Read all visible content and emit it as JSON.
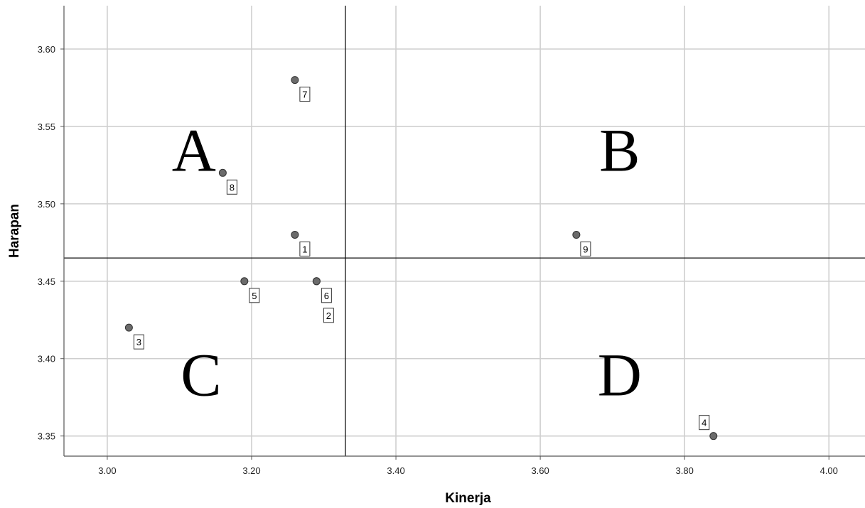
{
  "chart_data": {
    "type": "scatter",
    "title": "",
    "xlabel": "Kinerja",
    "ylabel": "Harapan",
    "xlim": [
      2.94,
      4.05
    ],
    "ylim": [
      3.337,
      3.628
    ],
    "x_ticks": [
      3.0,
      3.2,
      3.4,
      3.6,
      3.8,
      4.0
    ],
    "x_tick_labels": [
      "3.00",
      "3.20",
      "3.40",
      "3.60",
      "3.80",
      "4.00"
    ],
    "y_ticks": [
      3.35,
      3.4,
      3.45,
      3.5,
      3.55,
      3.6
    ],
    "y_tick_labels": [
      "3.35",
      "3.40",
      "3.45",
      "3.50",
      "3.55",
      "3.60"
    ],
    "grid": true,
    "reference_lines": {
      "x": 3.33,
      "y": 3.465
    },
    "quadrant_labels": [
      {
        "text": "A",
        "x": 3.12,
        "y": 3.535
      },
      {
        "text": "B",
        "x": 3.71,
        "y": 3.535
      },
      {
        "text": "C",
        "x": 3.13,
        "y": 3.39
      },
      {
        "text": "D",
        "x": 3.71,
        "y": 3.39
      }
    ],
    "points": [
      {
        "label": "1",
        "x": 3.26,
        "y": 3.48
      },
      {
        "label": "2",
        "x": 3.29,
        "y": 3.45
      },
      {
        "label": "3",
        "x": 3.03,
        "y": 3.42
      },
      {
        "label": "4",
        "x": 3.84,
        "y": 3.35
      },
      {
        "label": "5",
        "x": 3.19,
        "y": 3.45
      },
      {
        "label": "6",
        "x": 3.29,
        "y": 3.45
      },
      {
        "label": "7",
        "x": 3.26,
        "y": 3.58
      },
      {
        "label": "8",
        "x": 3.16,
        "y": 3.52
      },
      {
        "label": "9",
        "x": 3.65,
        "y": 3.48
      }
    ],
    "colors": {
      "point_fill": "#6b6b6b",
      "point_stroke": "#333333",
      "grid": "#cfcfcf",
      "axis": "#555555"
    }
  }
}
